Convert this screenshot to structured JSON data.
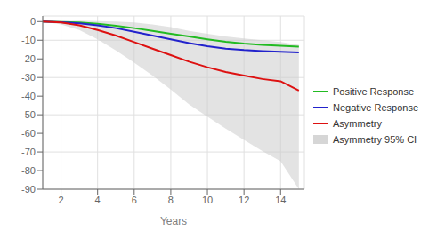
{
  "chart_data": {
    "type": "line",
    "xlabel": "Years",
    "x": [
      1,
      2,
      3,
      4,
      5,
      6,
      7,
      8,
      9,
      10,
      11,
      12,
      13,
      14,
      15
    ],
    "series": [
      {
        "name": "Positive Response",
        "color": "#22bb22",
        "values": [
          0,
          -0.2,
          -0.5,
          -1.2,
          -2.2,
          -3.5,
          -5.0,
          -6.5,
          -8.0,
          -9.5,
          -10.8,
          -11.8,
          -12.5,
          -13.0,
          -13.5
        ]
      },
      {
        "name": "Negative Response",
        "color": "#2222cc",
        "values": [
          0,
          -0.3,
          -0.9,
          -2.0,
          -3.5,
          -5.5,
          -7.5,
          -9.5,
          -11.5,
          -13.2,
          -14.5,
          -15.3,
          -15.8,
          -16.2,
          -16.5
        ]
      },
      {
        "name": "Asymmetry",
        "color": "#dd1111",
        "values": [
          0,
          -0.5,
          -2.0,
          -4.5,
          -7.5,
          -11.0,
          -14.5,
          -18.0,
          -21.5,
          -24.5,
          -27.0,
          -29.0,
          -30.8,
          -32.0,
          -37.0
        ]
      },
      {
        "name": "Asymmetry 95% CI",
        "type": "area",
        "color": "#cccccc",
        "upper": [
          0,
          0.3,
          0.5,
          0.3,
          0.0,
          -0.5,
          -1.5,
          -3.0,
          -5.0,
          -6.5,
          -8.0,
          -9.0,
          -10.0,
          -11.0,
          -12.5
        ],
        "lower": [
          0,
          -1.5,
          -4.5,
          -9.5,
          -15.5,
          -22.0,
          -29.0,
          -36.5,
          -44.5,
          -51.0,
          -57.5,
          -63.5,
          -69.5,
          -75.0,
          -90.0
        ]
      }
    ],
    "xlim": [
      1,
      15.3
    ],
    "ylim": [
      -90,
      3
    ],
    "xticks": [
      2,
      4,
      6,
      8,
      10,
      12,
      14
    ],
    "yticks": [
      0,
      -10,
      -20,
      -30,
      -40,
      -50,
      -60,
      -70,
      -80,
      -90
    ],
    "grid": true,
    "legend": "right"
  }
}
